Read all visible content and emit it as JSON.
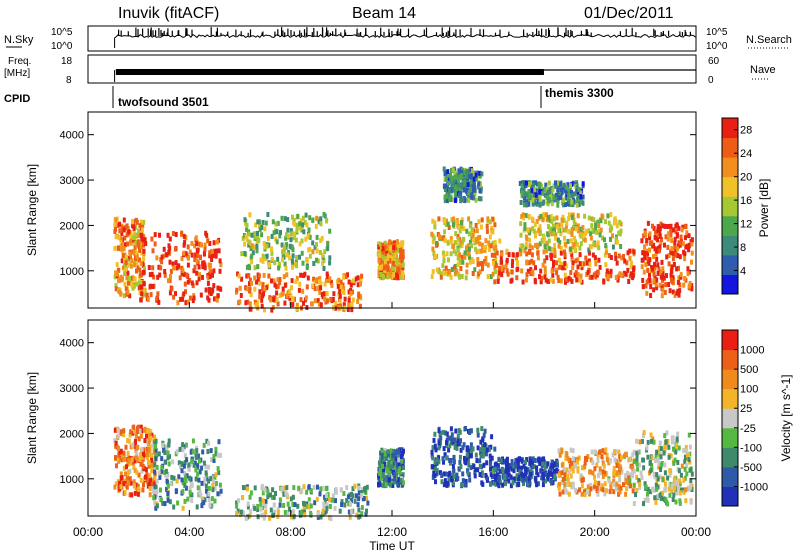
{
  "header": {
    "station": "Inuvik (fitACF)",
    "beam": "Beam 14",
    "date": "01/Dec/2011"
  },
  "strip_panels": {
    "nsky": {
      "label": "N.Sky",
      "tick_top": "10^5",
      "tick_bottom": "10^0"
    },
    "nsearch": {
      "label": "N.Search",
      "tick_top": "10^5",
      "tick_bottom": "10^0"
    },
    "freq": {
      "label_line1": "Freq.",
      "label_line2": "[MHz]",
      "tick_top": "18",
      "tick_bottom": "8"
    },
    "nave": {
      "label": "Nave",
      "tick_top": "60",
      "tick_bottom": "0"
    },
    "cpid": {
      "label": "CPID",
      "programs": [
        {
          "name": "twofsound 3501",
          "start_hour": 1.0
        },
        {
          "name": "themis 3300",
          "start_hour": 18.0
        }
      ]
    }
  },
  "chart_data": [
    {
      "type": "heatmap",
      "title": "",
      "xlabel": "Time UT",
      "ylabel": "Slant Range [km]",
      "xlim": [
        0,
        24
      ],
      "ylim": [
        180,
        4500
      ],
      "x_ticks": [
        "00:00",
        "04:00",
        "08:00",
        "12:00",
        "16:00",
        "20:00",
        "00:00"
      ],
      "y_ticks": [
        1000,
        2000,
        3000,
        4000
      ],
      "colorbar": {
        "label": "Power [dB]",
        "ticks": [
          4,
          8,
          12,
          16,
          20,
          24,
          28
        ],
        "range": [
          0,
          30
        ],
        "colors": [
          "#1515e0",
          "#2e5dae",
          "#3d8a7a",
          "#4ca84a",
          "#a6c832",
          "#f0c228",
          "#f28f1c",
          "#ef5c16",
          "#e81f12"
        ]
      },
      "regions": [
        {
          "t": [
            1.0,
            2.2
          ],
          "r": [
            500,
            2200
          ],
          "level": 0.72
        },
        {
          "t": [
            2.0,
            5.2
          ],
          "r": [
            350,
            1900
          ],
          "level": 0.92
        },
        {
          "t": [
            5.8,
            10.8
          ],
          "r": [
            180,
            1000
          ],
          "level": 0.8
        },
        {
          "t": [
            6.0,
            9.5
          ],
          "r": [
            1100,
            2300
          ],
          "level": 0.45
        },
        {
          "t": [
            11.4,
            12.4
          ],
          "r": [
            900,
            1700
          ],
          "level": 0.7
        },
        {
          "t": [
            13.5,
            16.2
          ],
          "r": [
            900,
            2200
          ],
          "level": 0.62
        },
        {
          "t": [
            16.0,
            21.5
          ],
          "r": [
            800,
            1500
          ],
          "level": 0.84
        },
        {
          "t": [
            17.0,
            21.0
          ],
          "r": [
            1500,
            2300
          ],
          "level": 0.55
        },
        {
          "t": [
            21.8,
            23.8
          ],
          "r": [
            500,
            2100
          ],
          "level": 0.9
        },
        {
          "t": [
            14.0,
            15.5
          ],
          "r": [
            2600,
            3300
          ],
          "level": 0.28
        },
        {
          "t": [
            17.0,
            19.5
          ],
          "r": [
            2500,
            3000
          ],
          "level": 0.3
        }
      ]
    },
    {
      "type": "heatmap",
      "title": "",
      "xlabel": "Time UT",
      "ylabel": "Slant Range [km]",
      "xlim": [
        0,
        24
      ],
      "ylim": [
        180,
        4500
      ],
      "x_ticks": [
        "00:00",
        "04:00",
        "08:00",
        "12:00",
        "16:00",
        "20:00",
        "00:00"
      ],
      "y_ticks": [
        1000,
        2000,
        3000,
        4000
      ],
      "colorbar": {
        "label": "Velocity [m s^-1]",
        "ticks": [
          "1000",
          "500",
          "100",
          "25",
          "-25",
          "-100",
          "-500",
          "-1000"
        ],
        "colors": [
          "#2030b8",
          "#2e5aa8",
          "#3f8a6a",
          "#55b840",
          "#c8c8c8",
          "#f2b52a",
          "#f08a1c",
          "#ec6018",
          "#e81f12"
        ]
      },
      "regions": [
        {
          "t": [
            1.0,
            2.6
          ],
          "r": [
            700,
            2200
          ],
          "level": 0.75
        },
        {
          "t": [
            2.5,
            5.2
          ],
          "r": [
            400,
            1900
          ],
          "level": 0.35
        },
        {
          "t": [
            5.8,
            11.0
          ],
          "r": [
            180,
            900
          ],
          "level": 0.38
        },
        {
          "t": [
            11.4,
            12.4
          ],
          "r": [
            900,
            1700
          ],
          "level": 0.25
        },
        {
          "t": [
            13.5,
            16.0
          ],
          "r": [
            900,
            2200
          ],
          "level": 0.12
        },
        {
          "t": [
            16.0,
            18.5
          ],
          "r": [
            900,
            1500
          ],
          "level": 0.1
        },
        {
          "t": [
            18.5,
            21.5
          ],
          "r": [
            700,
            1700
          ],
          "level": 0.65
        },
        {
          "t": [
            21.5,
            23.8
          ],
          "r": [
            500,
            2100
          ],
          "level": 0.45
        }
      ]
    }
  ]
}
